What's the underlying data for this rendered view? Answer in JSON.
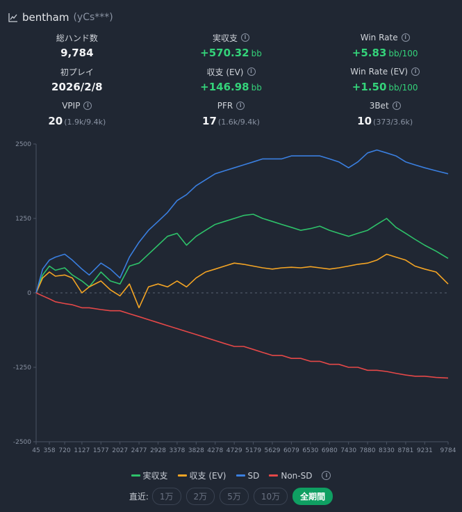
{
  "header": {
    "name": "bentham",
    "sub": "(yCs***)",
    "icon": "chart-line-icon"
  },
  "stats": [
    {
      "label": "総ハンド数",
      "value": "9,784",
      "unit": "",
      "extra": "",
      "info": false,
      "green": false
    },
    {
      "label": "実収支",
      "value": "+570.32",
      "unit": "bb",
      "extra": "",
      "info": true,
      "green": true
    },
    {
      "label": "Win Rate",
      "value": "+5.83",
      "unit": "bb/100",
      "extra": "",
      "info": true,
      "green": true
    },
    {
      "label": "初プレイ",
      "value": "2026/2/8",
      "unit": "",
      "extra": "",
      "info": false,
      "green": false
    },
    {
      "label": "収支 (EV)",
      "value": "+146.98",
      "unit": "bb",
      "extra": "",
      "info": true,
      "green": true
    },
    {
      "label": "Win Rate (EV)",
      "value": "+1.50",
      "unit": "bb/100",
      "extra": "",
      "info": true,
      "green": true
    },
    {
      "label": "VPIP",
      "value": "20",
      "unit": "",
      "extra": "(1.9k/9.4k)",
      "info": true,
      "green": false
    },
    {
      "label": "PFR",
      "value": "17",
      "unit": "",
      "extra": "(1.6k/9.4k)",
      "info": true,
      "green": false
    },
    {
      "label": "3Bet",
      "value": "10",
      "unit": "",
      "extra": "(373/3.6k)",
      "info": true,
      "green": false
    }
  ],
  "chart_data": {
    "type": "line",
    "title": "",
    "xlabel": "",
    "ylabel": "",
    "xlim": [
      45,
      9784
    ],
    "ylim": [
      -2500,
      2500
    ],
    "x_ticks": [
      45,
      358,
      720,
      1127,
      1577,
      2027,
      2477,
      2928,
      3378,
      3828,
      4278,
      4729,
      5179,
      5629,
      6079,
      6530,
      6980,
      7430,
      7880,
      8330,
      8781,
      9231,
      9784
    ],
    "y_ticks": [
      2500,
      1250,
      0,
      -1250,
      -2500
    ],
    "x": [
      45,
      200,
      358,
      500,
      720,
      900,
      1127,
      1300,
      1577,
      1800,
      2027,
      2250,
      2477,
      2700,
      2928,
      3150,
      3378,
      3600,
      3828,
      4050,
      4278,
      4500,
      4729,
      4950,
      5179,
      5400,
      5629,
      5850,
      6079,
      6300,
      6530,
      6750,
      6980,
      7200,
      7430,
      7650,
      7880,
      8100,
      8330,
      8550,
      8781,
      9000,
      9231,
      9500,
      9784
    ],
    "series": [
      {
        "name": "実収支",
        "color": "#2ec26a",
        "values": [
          0,
          300,
          450,
          380,
          420,
          300,
          200,
          100,
          350,
          200,
          150,
          450,
          500,
          650,
          800,
          950,
          1000,
          800,
          950,
          1050,
          1150,
          1200,
          1250,
          1300,
          1320,
          1250,
          1200,
          1150,
          1100,
          1050,
          1080,
          1120,
          1050,
          1000,
          950,
          1000,
          1050,
          1150,
          1250,
          1100,
          1000,
          900,
          800,
          700,
          580
        ]
      },
      {
        "name": "収支 (EV)",
        "color": "#f5a524",
        "values": [
          0,
          250,
          350,
          280,
          300,
          250,
          0,
          100,
          200,
          50,
          -50,
          150,
          -250,
          100,
          150,
          100,
          200,
          100,
          250,
          350,
          400,
          450,
          500,
          480,
          450,
          420,
          400,
          420,
          430,
          420,
          440,
          420,
          400,
          420,
          450,
          480,
          500,
          550,
          650,
          600,
          550,
          450,
          400,
          350,
          150
        ]
      },
      {
        "name": "SD",
        "color": "#3a7fe0",
        "values": [
          0,
          400,
          550,
          600,
          650,
          550,
          400,
          300,
          500,
          400,
          250,
          600,
          850,
          1050,
          1200,
          1350,
          1550,
          1650,
          1800,
          1900,
          2000,
          2050,
          2100,
          2150,
          2200,
          2250,
          2250,
          2250,
          2300,
          2300,
          2300,
          2300,
          2250,
          2200,
          2100,
          2200,
          2350,
          2400,
          2350,
          2300,
          2200,
          2150,
          2100,
          2050,
          2000
        ]
      },
      {
        "name": "Non-SD",
        "color": "#e54848",
        "values": [
          0,
          -50,
          -100,
          -150,
          -180,
          -200,
          -250,
          -250,
          -280,
          -300,
          -300,
          -350,
          -400,
          -450,
          -500,
          -550,
          -600,
          -650,
          -700,
          -750,
          -800,
          -850,
          -900,
          -900,
          -950,
          -1000,
          -1050,
          -1050,
          -1100,
          -1100,
          -1150,
          -1150,
          -1200,
          -1200,
          -1250,
          -1250,
          -1300,
          -1300,
          -1320,
          -1350,
          -1380,
          -1400,
          -1400,
          -1420,
          -1430
        ]
      }
    ]
  },
  "legend": [
    {
      "label": "実収支",
      "color": "#2ec26a"
    },
    {
      "label": "収支 (EV)",
      "color": "#f5a524"
    },
    {
      "label": "SD",
      "color": "#3a7fe0"
    },
    {
      "label": "Non-SD",
      "color": "#e54848"
    }
  ],
  "range": {
    "label": "直近:",
    "buttons": [
      {
        "label": "1万",
        "active": false
      },
      {
        "label": "2万",
        "active": false
      },
      {
        "label": "5万",
        "active": false
      },
      {
        "label": "10万",
        "active": false
      },
      {
        "label": "全期間",
        "active": true
      }
    ]
  },
  "colors": {
    "background": "#202733",
    "axis": "#4a5363",
    "tick": "#8a93a3",
    "positive": "#34d37a",
    "accent": "#0f9f62"
  }
}
